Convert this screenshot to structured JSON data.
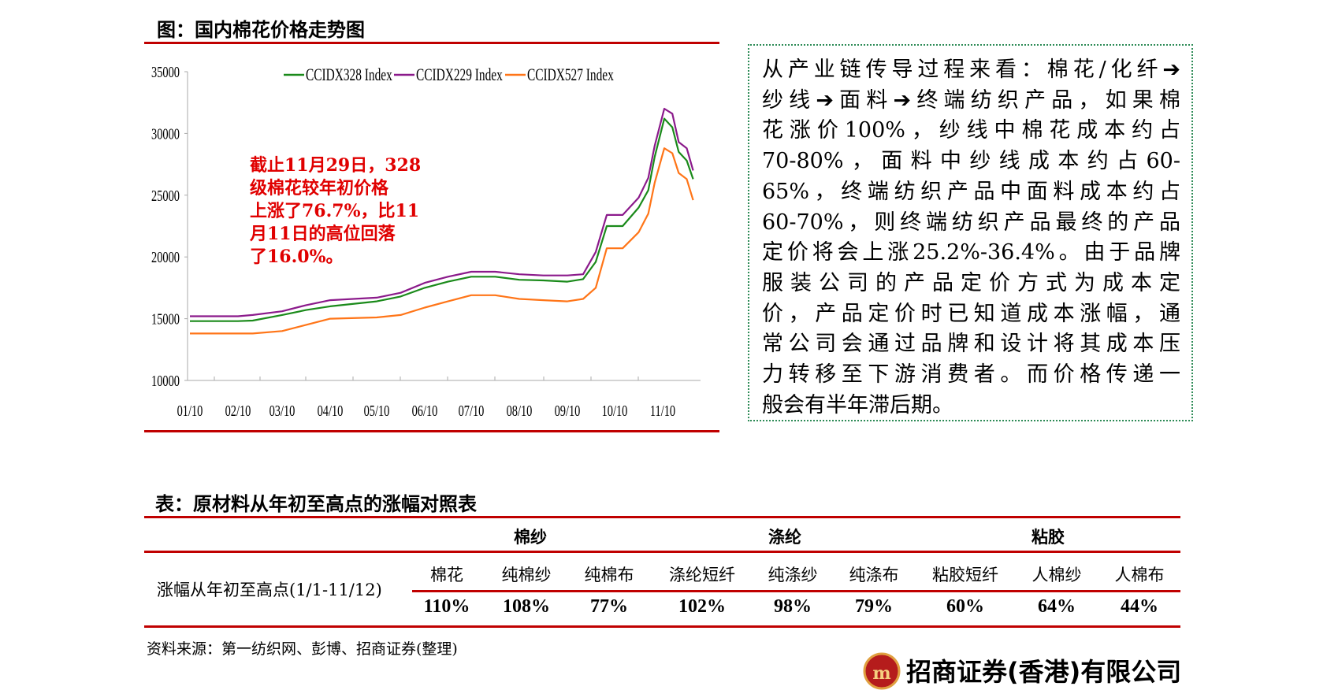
{
  "figure_title": "图：国内棉花价格走势图",
  "chart_data": {
    "type": "line",
    "title": "",
    "xlabel": "",
    "ylabel": "",
    "ylim": [
      10000,
      35000
    ],
    "yticks": [
      "35000",
      "30000",
      "25000",
      "20000",
      "15000",
      "10000"
    ],
    "xticks": [
      "01/10",
      "02/10",
      "03/10",
      "04/10",
      "05/10",
      "06/10",
      "07/10",
      "08/10",
      "09/10",
      "10/10",
      "11/10"
    ],
    "legend_position": "top",
    "grid": false,
    "x": [
      "01/10",
      "02/10",
      "02/20",
      "03/10",
      "03/25",
      "04/10",
      "05/10",
      "05/25",
      "06/10",
      "06/25",
      "07/10",
      "07/25",
      "08/10",
      "08/25",
      "09/10",
      "09/20",
      "09/28",
      "10/05",
      "10/15",
      "10/25",
      "11/01",
      "11/05",
      "11/11",
      "11/16",
      "11/20",
      "11/25",
      "11/29"
    ],
    "series": [
      {
        "name": "CCIDX328 Index",
        "color": "#1a8a1a",
        "values": [
          14800,
          14800,
          14850,
          15300,
          15700,
          16000,
          16400,
          16800,
          17500,
          18000,
          18400,
          18400,
          18150,
          18100,
          18000,
          18200,
          19600,
          22500,
          22500,
          24000,
          25400,
          28100,
          31200,
          30500,
          28500,
          27800,
          26300
        ]
      },
      {
        "name": "CCIDX229 Index",
        "color": "#8b1a8b",
        "values": [
          15200,
          15200,
          15300,
          15600,
          16100,
          16500,
          16700,
          17100,
          17900,
          18400,
          18800,
          18800,
          18600,
          18500,
          18500,
          18600,
          20400,
          23400,
          23400,
          24800,
          26400,
          29000,
          32000,
          31600,
          29300,
          28800,
          27000
        ]
      },
      {
        "name": "CCIDX527 Index",
        "color": "#ff7518",
        "values": [
          13800,
          13800,
          13800,
          14000,
          14500,
          15000,
          15100,
          15300,
          15900,
          16400,
          16900,
          16900,
          16600,
          16500,
          16400,
          16600,
          17500,
          20700,
          20700,
          22000,
          23500,
          26000,
          28800,
          28400,
          26800,
          26300,
          24600
        ]
      }
    ],
    "annotation": [
      "截止11月29日，328",
      "级棉花较年初价格",
      "上涨了76.7%，比11",
      "月11日的高位回落",
      "了16.0%。"
    ]
  },
  "textbox": {
    "lines": [
      "从产业链传导过程来看：棉花/化纤➔",
      "纱线➔面料➔终端纺织产品，如果棉",
      "花涨价100%，纱线中棉花成本约占",
      "70-80%，面料中纱线成本约占60-",
      "65%，终端纺织产品中面料成本约占",
      "60-70%，则终端纺织产品最终的产品",
      "定价将会上涨25.2%-36.4%。由于品牌",
      "服装公司的产品定价方式为成本定",
      "价，产品定价时已知道成本涨幅，通",
      "常公司会通过品牌和设计将其成本压",
      "力转移至下游消费者。而价格传递一",
      "般会有半年滞后期。"
    ]
  },
  "table": {
    "title": "表：原材料从年初至高点的涨幅对照表",
    "groups": [
      "棉纱",
      "涤纶",
      "粘胶"
    ],
    "row_label": "涨幅从年初至高点(1/1-11/12)",
    "columns": [
      "棉花",
      "纯棉纱",
      "纯棉布",
      "涤纶短纤",
      "纯涤纱",
      "纯涤布",
      "粘胶短纤",
      "人棉纱",
      "人棉布"
    ],
    "values": [
      "110%",
      "108%",
      "77%",
      "102%",
      "98%",
      "79%",
      "60%",
      "64%",
      "44%"
    ]
  },
  "source": "资料来源：第一纺织网、彭博、招商证券(整理)",
  "logo_text": "招商证券(香港)有限公司",
  "colors": {
    "accent_red": "#c00000",
    "annotation_red": "#e00000",
    "box_border": "#2e8b57"
  }
}
